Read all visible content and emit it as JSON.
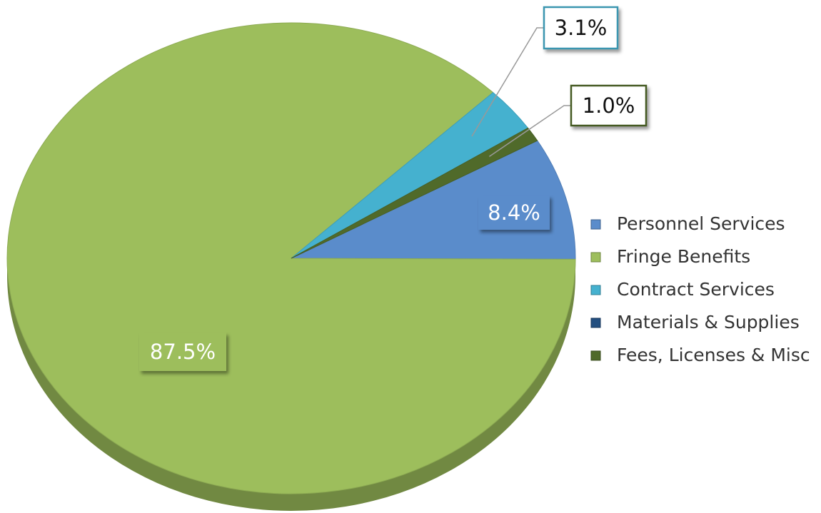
{
  "chart_data": {
    "type": "pie",
    "categories": [
      "Personnel Services",
      "Fringe Benefits",
      "Contract Services",
      "Materials & Supplies",
      "Fees, Licenses & Misc"
    ],
    "values": [
      8.4,
      87.5,
      3.1,
      0,
      1.0
    ],
    "value_labels": [
      "8.4%",
      "87.5%",
      "3.1%",
      null,
      "1.0%"
    ],
    "colors": [
      "#5a8ccb",
      "#9dbe5c",
      "#45b1cf",
      "#234f80",
      "#506a2a"
    ],
    "legend": "right"
  }
}
